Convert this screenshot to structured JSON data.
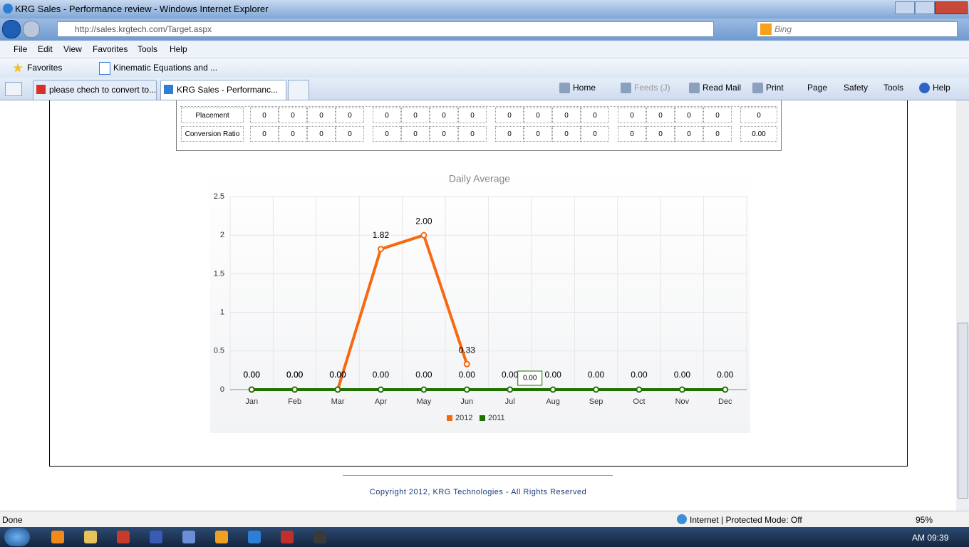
{
  "window": {
    "title": "KRG Sales - Performance review - Windows Internet Explorer",
    "url": "http://sales.krgtech.com/Target.aspx",
    "search": "Bing",
    "menu": [
      "File",
      "Edit",
      "View",
      "Favorites",
      "Tools",
      "Help"
    ],
    "favorites": "Favorites",
    "favorite_link": "Kinematic Equations and ...",
    "tabs": [
      "please chech to convert to...",
      "KRG Sales - Performanc..."
    ],
    "commands": [
      "Home",
      "Feeds (J)",
      "Read Mail",
      "Print",
      "Page",
      "Safety",
      "Tools",
      "Help"
    ]
  },
  "table": {
    "rows": [
      {
        "label": "Placement",
        "cells": [
          "0",
          "0",
          "0",
          "0",
          "0",
          "0",
          "0",
          "0",
          "0",
          "0",
          "0",
          "0",
          "0",
          "0",
          "0",
          "0",
          "0"
        ]
      },
      {
        "label": "Conversion Ratio",
        "cells": [
          "0",
          "0",
          "0",
          "0",
          "0",
          "0",
          "0",
          "0",
          "0",
          "0",
          "0",
          "0",
          "0",
          "0",
          "0",
          "0",
          "0.00"
        ]
      }
    ]
  },
  "chart_data": {
    "type": "line",
    "title": "Daily Average",
    "categories": [
      "Jan",
      "Feb",
      "Mar",
      "Apr",
      "May",
      "Jun",
      "Jul",
      "Aug",
      "Sep",
      "Oct",
      "Nov",
      "Dec"
    ],
    "series": [
      {
        "name": "2012",
        "color": "#f7680f",
        "values": [
          0,
          0,
          0,
          1.82,
          2,
          0.33,
          null,
          null,
          null,
          null,
          null,
          null
        ],
        "value_labels": [
          "0.00",
          "0.00",
          "0.00",
          "1.82",
          "2.00",
          "0.33",
          null,
          null,
          null,
          null,
          null,
          null
        ]
      },
      {
        "name": "2011",
        "color": "#1f7200",
        "values": [
          0,
          0,
          0,
          0,
          0,
          0,
          0,
          0,
          0,
          0,
          0,
          0
        ],
        "value_labels": [
          "0.00",
          "0.00",
          "0.00",
          "0.00",
          "0.00",
          "0.00",
          "0.00",
          "0.00",
          "0.00",
          "0.00",
          "0.00",
          "0.00"
        ]
      }
    ],
    "ylim": [
      0,
      2.5
    ],
    "yticks": [
      0,
      0.5,
      1,
      1.5,
      2,
      2.5
    ],
    "grid": true,
    "legend": "bottom"
  },
  "footer": "Copyright 2012, KRG Technologies - All Rights Reserved",
  "status": {
    "text": "Done",
    "zone": "Internet | Protected Mode: Off",
    "zoom": "95%"
  },
  "taskbar": {
    "time": "AM 09:39"
  }
}
